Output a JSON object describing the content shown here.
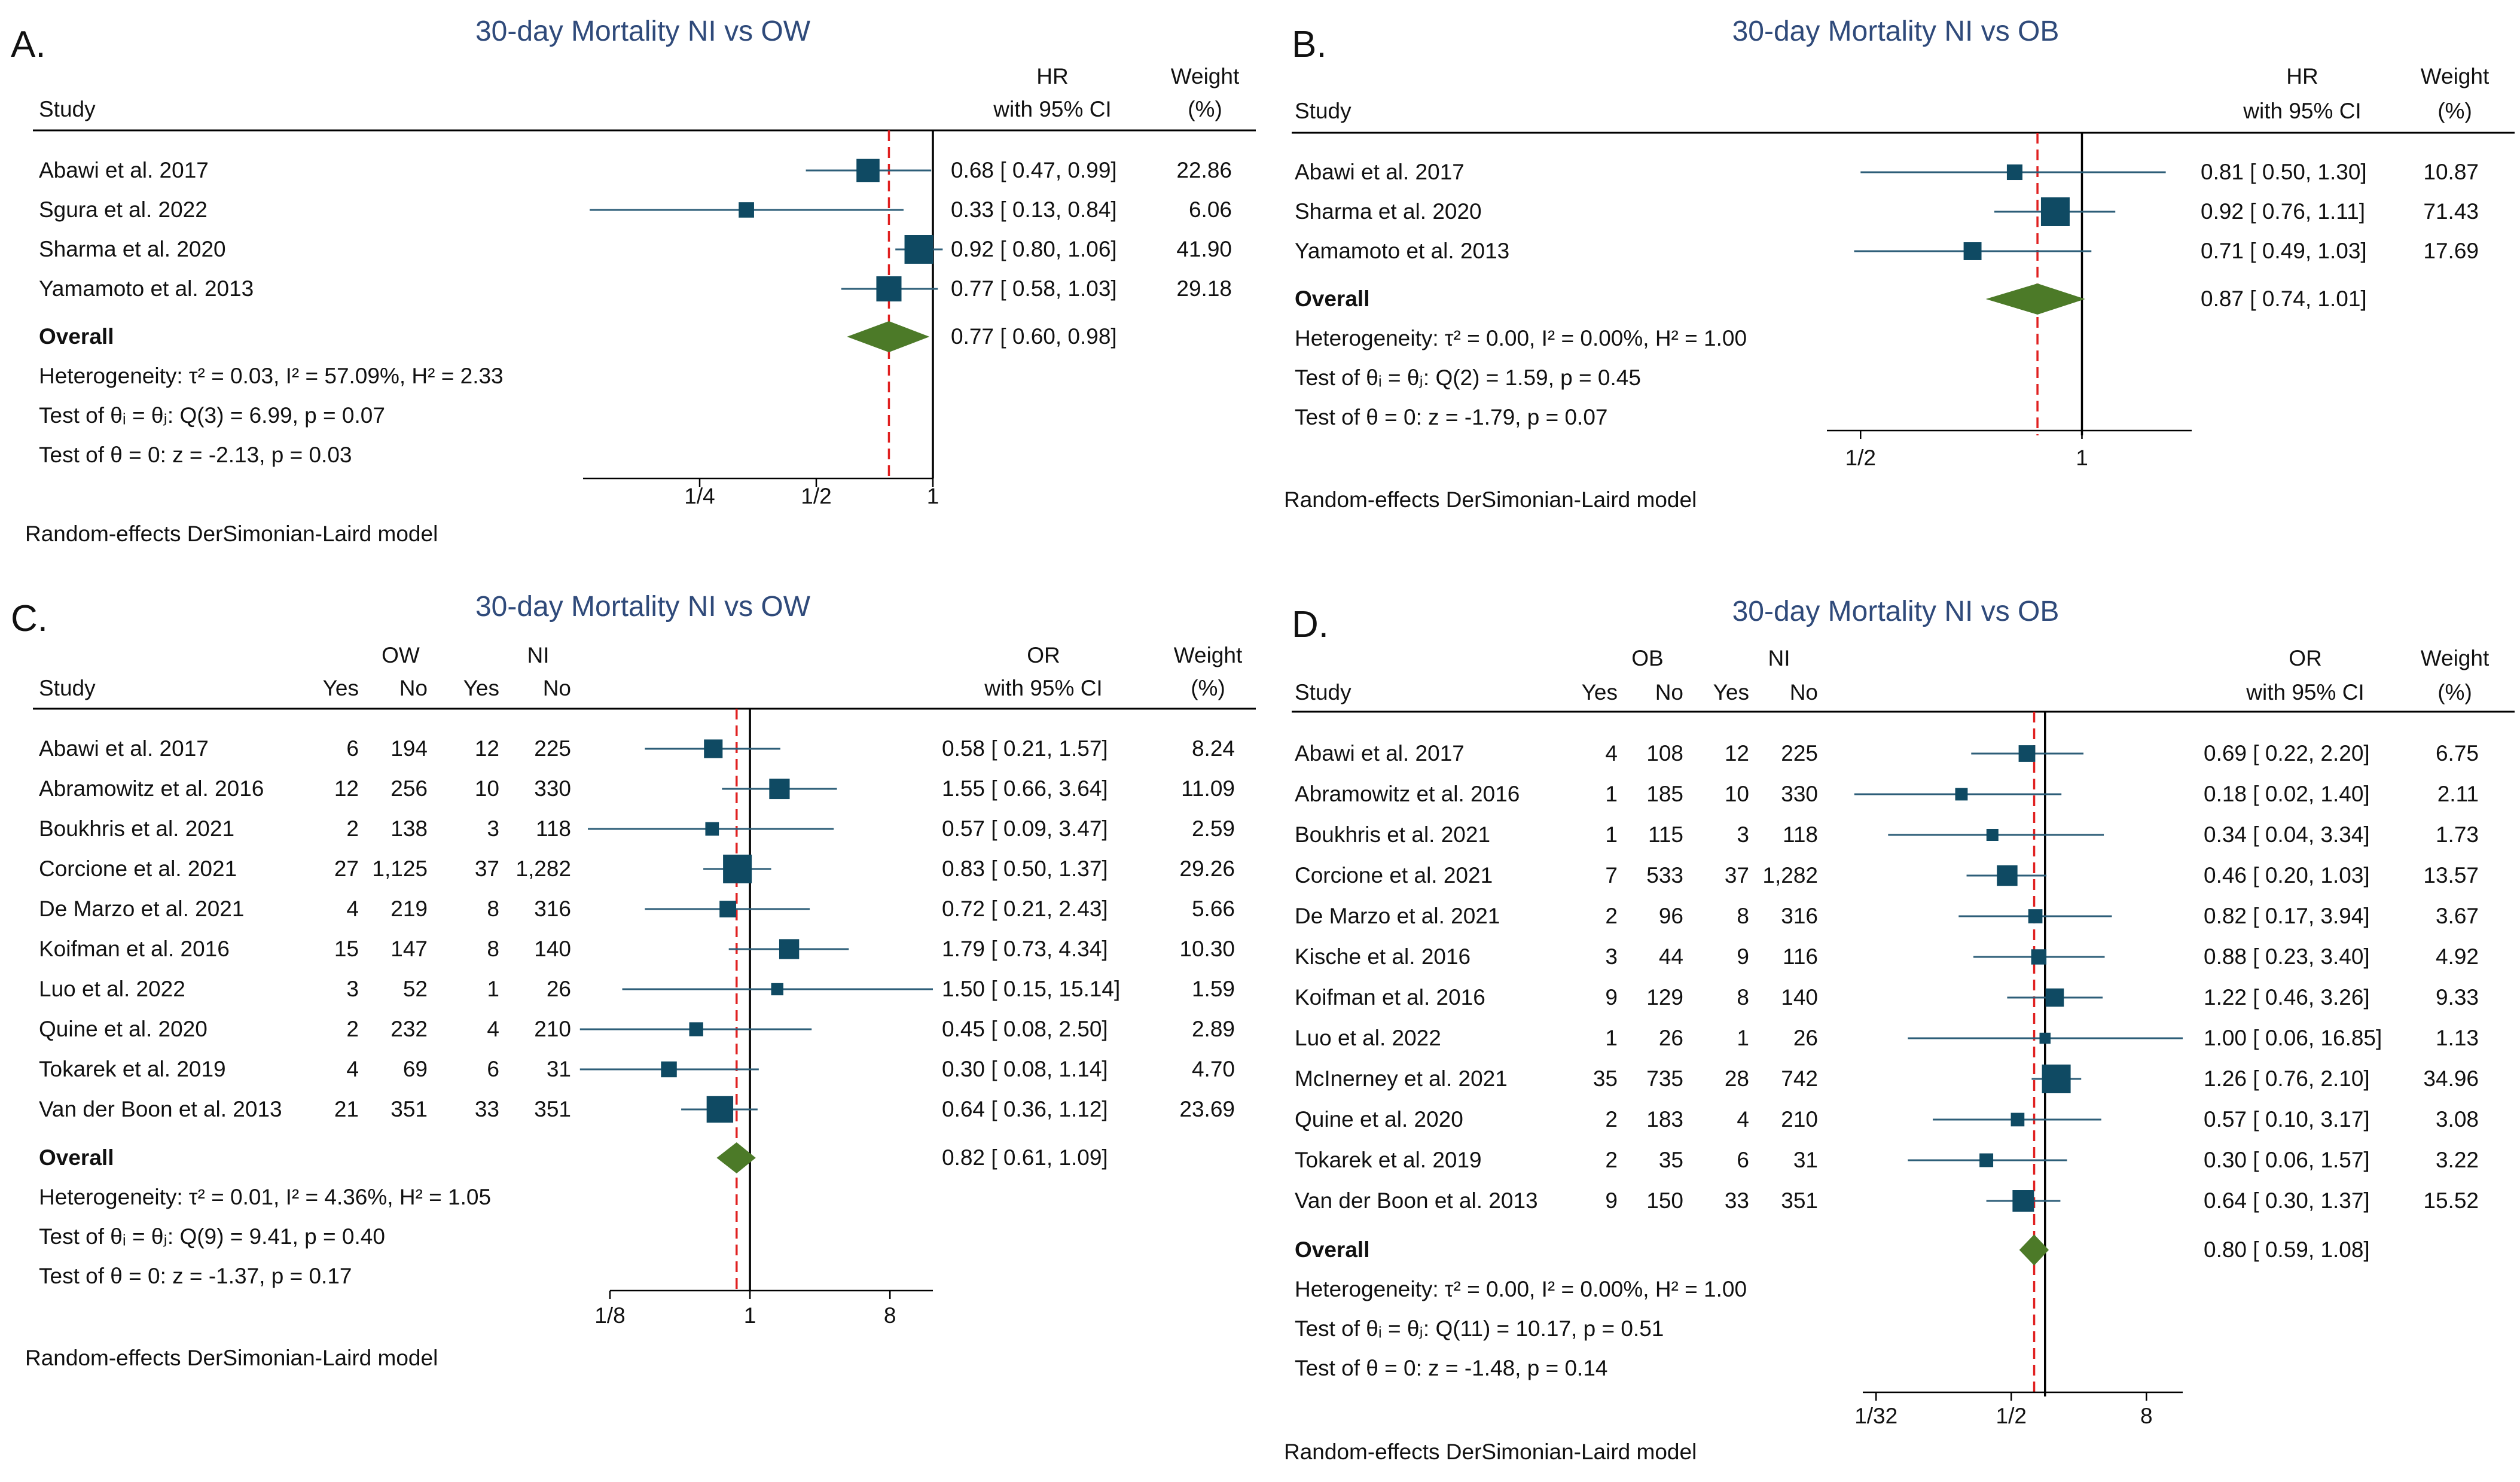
{
  "chart_data": [
    {
      "panel": "A.",
      "type": "forest",
      "title": "30-day Mortality NI vs OW",
      "effect_header": [
        "HR",
        "with 95% CI"
      ],
      "weight_header": [
        "Weight",
        "(%)"
      ],
      "study_header": "Study",
      "group_headers": [],
      "axis": {
        "min": 0.125,
        "max": 1,
        "scale": "log2",
        "ticks": [
          {
            "v": 0.25,
            "label": "1/4"
          },
          {
            "v": 0.5,
            "label": "1/2"
          },
          {
            "v": 1,
            "label": "1"
          }
        ]
      },
      "studies": [
        {
          "name": "Abawi et al. 2017",
          "counts": [],
          "est": 0.68,
          "lo": 0.47,
          "hi": 0.99,
          "ci_text": "0.68 [  0.47,  0.99]",
          "weight": 22.86,
          "weight_text": "22.86"
        },
        {
          "name": "Sgura et al. 2022",
          "counts": [],
          "est": 0.33,
          "lo": 0.13,
          "hi": 0.84,
          "ci_text": "0.33 [  0.13,  0.84]",
          "weight": 6.06,
          "weight_text": "6.06"
        },
        {
          "name": "Sharma et al. 2020",
          "counts": [],
          "est": 0.92,
          "lo": 0.8,
          "hi": 1.06,
          "ci_text": "0.92 [  0.80,  1.06]",
          "weight": 41.9,
          "weight_text": "41.90"
        },
        {
          "name": "Yamamoto et al. 2013",
          "counts": [],
          "est": 0.77,
          "lo": 0.58,
          "hi": 1.03,
          "ci_text": "0.77 [  0.58,  1.03]",
          "weight": 29.18,
          "weight_text": "29.18"
        }
      ],
      "overall": {
        "label": "Overall",
        "est": 0.77,
        "lo": 0.6,
        "hi": 0.98,
        "ci_text": "0.77 [  0.60,  0.98]"
      },
      "stats": [
        "Heterogeneity: τ² = 0.03, I² = 57.09%, H² = 2.33",
        "Test of θᵢ = θⱼ: Q(3) = 6.99, p = 0.07",
        "Test of θ = 0: z = -2.13, p = 0.03"
      ],
      "model_note": "Random-effects DerSimonian-Laird model"
    },
    {
      "panel": "B.",
      "type": "forest",
      "title": "30-day Mortality NI vs OB",
      "effect_header": [
        "HR",
        "with 95% CI"
      ],
      "weight_header": [
        "Weight",
        "(%)"
      ],
      "study_header": "Study",
      "group_headers": [],
      "axis": {
        "min": 0.45,
        "max": 1.41,
        "scale": "log2",
        "ticks": [
          {
            "v": 0.5,
            "label": "1/2"
          },
          {
            "v": 1,
            "label": "1"
          }
        ]
      },
      "studies": [
        {
          "name": "Abawi et al. 2017",
          "counts": [],
          "est": 0.81,
          "lo": 0.5,
          "hi": 1.3,
          "ci_text": "0.81 [  0.50,  1.30]",
          "weight": 10.87,
          "weight_text": "10.87"
        },
        {
          "name": "Sharma et al. 2020",
          "counts": [],
          "est": 0.92,
          "lo": 0.76,
          "hi": 1.11,
          "ci_text": "0.92 [  0.76,  1.11]",
          "weight": 71.43,
          "weight_text": "71.43"
        },
        {
          "name": "Yamamoto et al. 2013",
          "counts": [],
          "est": 0.71,
          "lo": 0.49,
          "hi": 1.03,
          "ci_text": "0.71 [  0.49,  1.03]",
          "weight": 17.69,
          "weight_text": "17.69"
        }
      ],
      "overall": {
        "label": "Overall",
        "est": 0.87,
        "lo": 0.74,
        "hi": 1.01,
        "ci_text": "0.87 [  0.74,  1.01]"
      },
      "stats": [
        "Heterogeneity: τ² = 0.00, I² = 0.00%, H² = 1.00",
        "Test of θᵢ = θⱼ: Q(2) = 1.59, p = 0.45",
        "Test of θ = 0: z = -1.79, p = 0.07"
      ],
      "model_note": "Random-effects DerSimonian-Laird model"
    },
    {
      "panel": "C.",
      "type": "forest",
      "title": "30-day Mortality NI vs OW",
      "effect_header": [
        "OR",
        "with 95% CI"
      ],
      "weight_header": [
        "Weight",
        "(%)"
      ],
      "study_header": "Study",
      "group_headers": [
        "OW",
        "NI"
      ],
      "count_headers": [
        "Yes",
        "No",
        "Yes",
        "No"
      ],
      "axis": {
        "min": 0.125,
        "max": 15.14,
        "scale": "log2",
        "ticks": [
          {
            "v": 0.125,
            "label": "1/8"
          },
          {
            "v": 1,
            "label": "1"
          },
          {
            "v": 8,
            "label": "8"
          }
        ]
      },
      "studies": [
        {
          "name": "Abawi et al. 2017",
          "counts": [
            "6",
            "194",
            "12",
            "225"
          ],
          "est": 0.58,
          "lo": 0.21,
          "hi": 1.57,
          "ci_text": "0.58 [  0.21,  1.57]",
          "weight": 8.24,
          "weight_text": "8.24"
        },
        {
          "name": "Abramowitz et al. 2016",
          "counts": [
            "12",
            "256",
            "10",
            "330"
          ],
          "est": 1.55,
          "lo": 0.66,
          "hi": 3.64,
          "ci_text": "1.55 [  0.66,  3.64]",
          "weight": 11.09,
          "weight_text": "11.09"
        },
        {
          "name": "Boukhris et al. 2021",
          "counts": [
            "2",
            "138",
            "3",
            "118"
          ],
          "est": 0.57,
          "lo": 0.09,
          "hi": 3.47,
          "ci_text": "0.57 [  0.09,  3.47]",
          "weight": 2.59,
          "weight_text": "2.59"
        },
        {
          "name": "Corcione et al. 2021",
          "counts": [
            "27",
            "1,125",
            "37",
            "1,282"
          ],
          "est": 0.83,
          "lo": 0.5,
          "hi": 1.37,
          "ci_text": "0.83 [  0.50,  1.37]",
          "weight": 29.26,
          "weight_text": "29.26"
        },
        {
          "name": "De Marzo et al. 2021",
          "counts": [
            "4",
            "219",
            "8",
            "316"
          ],
          "est": 0.72,
          "lo": 0.21,
          "hi": 2.43,
          "ci_text": "0.72 [  0.21,  2.43]",
          "weight": 5.66,
          "weight_text": "5.66"
        },
        {
          "name": "Koifman et al. 2016",
          "counts": [
            "15",
            "147",
            "8",
            "140"
          ],
          "est": 1.79,
          "lo": 0.73,
          "hi": 4.34,
          "ci_text": "1.79 [  0.73,  4.34]",
          "weight": 10.3,
          "weight_text": "10.30"
        },
        {
          "name": "Luo et al. 2022",
          "counts": [
            "3",
            "52",
            "1",
            "26"
          ],
          "est": 1.5,
          "lo": 0.15,
          "hi": 15.14,
          "ci_text": "1.50 [  0.15, 15.14]",
          "weight": 1.59,
          "weight_text": "1.59"
        },
        {
          "name": "Quine et al. 2020",
          "counts": [
            "2",
            "232",
            "4",
            "210"
          ],
          "est": 0.45,
          "lo": 0.08,
          "hi": 2.5,
          "ci_text": "0.45 [  0.08,  2.50]",
          "weight": 2.89,
          "weight_text": "2.89"
        },
        {
          "name": "Tokarek et al. 2019",
          "counts": [
            "4",
            "69",
            "6",
            "31"
          ],
          "est": 0.3,
          "lo": 0.08,
          "hi": 1.14,
          "ci_text": "0.30 [  0.08,  1.14]",
          "weight": 4.7,
          "weight_text": "4.70"
        },
        {
          "name": "Van der Boon et al. 2013",
          "counts": [
            "21",
            "351",
            "33",
            "351"
          ],
          "est": 0.64,
          "lo": 0.36,
          "hi": 1.12,
          "ci_text": "0.64 [  0.36,  1.12]",
          "weight": 23.69,
          "weight_text": "23.69"
        }
      ],
      "overall": {
        "label": "Overall",
        "est": 0.82,
        "lo": 0.61,
        "hi": 1.09,
        "ci_text": "0.82 [  0.61,  1.09]"
      },
      "stats": [
        "Heterogeneity: τ² = 0.01, I² = 4.36%, H² = 1.05",
        "Test of θᵢ = θⱼ: Q(9) = 9.41, p = 0.40",
        "Test of θ = 0: z = -1.37, p = 0.17"
      ],
      "model_note": "Random-effects DerSimonian-Laird model"
    },
    {
      "panel": "D.",
      "type": "forest",
      "title": "30-day Mortality NI vs OB",
      "effect_header": [
        "OR",
        "with 95% CI"
      ],
      "weight_header": [
        "Weight",
        "(%)"
      ],
      "study_header": "Study",
      "group_headers": [
        "OB",
        "NI"
      ],
      "count_headers": [
        "Yes",
        "No",
        "Yes",
        "No"
      ],
      "axis": {
        "min": 0.0238,
        "max": 16.85,
        "scale": "log2",
        "ticks": [
          {
            "v": 0.03125,
            "label": "1/32"
          },
          {
            "v": 0.5,
            "label": "1/2"
          },
          {
            "v": 8,
            "label": "8"
          }
        ]
      },
      "studies": [
        {
          "name": "Abawi et al. 2017",
          "counts": [
            "4",
            "108",
            "12",
            "225"
          ],
          "est": 0.69,
          "lo": 0.22,
          "hi": 2.2,
          "ci_text": "0.69 [  0.22,  2.20]",
          "weight": 6.75,
          "weight_text": "6.75"
        },
        {
          "name": "Abramowitz et al. 2016",
          "counts": [
            "1",
            "185",
            "10",
            "330"
          ],
          "est": 0.18,
          "lo": 0.02,
          "hi": 1.4,
          "ci_text": "0.18 [  0.02,  1.40]",
          "weight": 2.11,
          "weight_text": "2.11"
        },
        {
          "name": "Boukhris et al. 2021",
          "counts": [
            "1",
            "115",
            "3",
            "118"
          ],
          "est": 0.34,
          "lo": 0.04,
          "hi": 3.34,
          "ci_text": "0.34 [  0.04,  3.34]",
          "weight": 1.73,
          "weight_text": "1.73"
        },
        {
          "name": "Corcione et al. 2021",
          "counts": [
            "7",
            "533",
            "37",
            "1,282"
          ],
          "est": 0.46,
          "lo": 0.2,
          "hi": 1.03,
          "ci_text": "0.46 [  0.20,  1.03]",
          "weight": 13.57,
          "weight_text": "13.57"
        },
        {
          "name": "De Marzo et al. 2021",
          "counts": [
            "2",
            "96",
            "8",
            "316"
          ],
          "est": 0.82,
          "lo": 0.17,
          "hi": 3.94,
          "ci_text": "0.82 [  0.17,  3.94]",
          "weight": 3.67,
          "weight_text": "3.67"
        },
        {
          "name": "Kische et al. 2016",
          "counts": [
            "3",
            "44",
            "9",
            "116"
          ],
          "est": 0.88,
          "lo": 0.23,
          "hi": 3.4,
          "ci_text": "0.88 [  0.23,  3.40]",
          "weight": 4.92,
          "weight_text": "4.92"
        },
        {
          "name": "Koifman et al. 2016",
          "counts": [
            "9",
            "129",
            "8",
            "140"
          ],
          "est": 1.22,
          "lo": 0.46,
          "hi": 3.26,
          "ci_text": "1.22 [  0.46,  3.26]",
          "weight": 9.33,
          "weight_text": "9.33"
        },
        {
          "name": "Luo et al. 2022",
          "counts": [
            "1",
            "26",
            "1",
            "26"
          ],
          "est": 1.0,
          "lo": 0.06,
          "hi": 16.85,
          "ci_text": "1.00 [  0.06, 16.85]",
          "weight": 1.13,
          "weight_text": "1.13"
        },
        {
          "name": "McInerney et al. 2021",
          "counts": [
            "35",
            "735",
            "28",
            "742"
          ],
          "est": 1.26,
          "lo": 0.76,
          "hi": 2.1,
          "ci_text": "1.26 [  0.76,  2.10]",
          "weight": 34.96,
          "weight_text": "34.96"
        },
        {
          "name": "Quine et al. 2020",
          "counts": [
            "2",
            "183",
            "4",
            "210"
          ],
          "est": 0.57,
          "lo": 0.1,
          "hi": 3.17,
          "ci_text": "0.57 [  0.10,  3.17]",
          "weight": 3.08,
          "weight_text": "3.08"
        },
        {
          "name": "Tokarek et al. 2019",
          "counts": [
            "2",
            "35",
            "6",
            "31"
          ],
          "est": 0.3,
          "lo": 0.06,
          "hi": 1.57,
          "ci_text": "0.30 [  0.06,  1.57]",
          "weight": 3.22,
          "weight_text": "3.22"
        },
        {
          "name": "Van der Boon et al. 2013",
          "counts": [
            "9",
            "150",
            "33",
            "351"
          ],
          "est": 0.64,
          "lo": 0.3,
          "hi": 1.37,
          "ci_text": "0.64 [  0.30,  1.37]",
          "weight": 15.52,
          "weight_text": "15.52"
        }
      ],
      "overall": {
        "label": "Overall",
        "est": 0.8,
        "lo": 0.59,
        "hi": 1.08,
        "ci_text": "0.80 [  0.59,  1.08]"
      },
      "stats": [
        "Heterogeneity: τ² = 0.00, I² = 0.00%, H² = 1.00",
        "Test of θᵢ = θⱼ: Q(11) = 10.17, p = 0.51",
        "Test of θ = 0: z = -1.48, p = 0.14"
      ],
      "model_note": "Random-effects DerSimonian-Laird model"
    }
  ],
  "colors": {
    "title": "#2f4a7a",
    "marker": "#0f4a63",
    "ci_line": "#2d5e78",
    "diamond": "#4c7a28",
    "ref_line": "#e02020",
    "text": "#111111"
  }
}
